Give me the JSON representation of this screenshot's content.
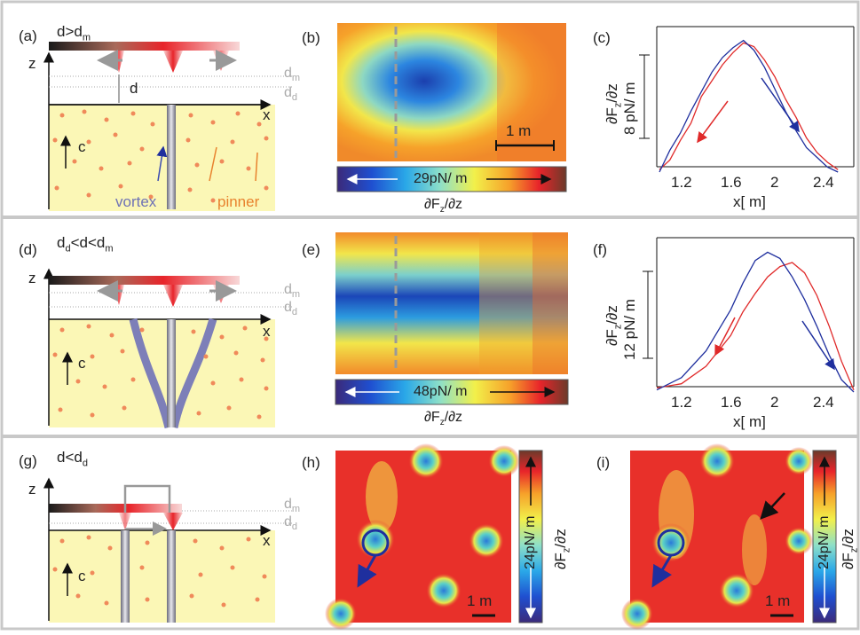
{
  "panels": {
    "a": {
      "letter": "(a)",
      "condition": "d>d",
      "cond_sub": "m",
      "z": "z",
      "x": "x",
      "d": "d",
      "dm": "d",
      "dm_sub": "m",
      "dd": "d",
      "dd_sub": "d",
      "c": "c",
      "vortex": "vortex",
      "pinner": "pinner"
    },
    "b": {
      "letter": "(b)",
      "scalebar": "1 m",
      "colorbar_label": "29pN/ m",
      "colorbar_axis": "∂F",
      "colorbar_axis_sub": "z",
      "colorbar_axis_end": "/∂z"
    },
    "c": {
      "letter": "(c)",
      "ylabel": "∂F",
      "ylabel_sub": "z",
      "ylabel_end": "/∂z",
      "scale": "8 pN/ m",
      "xlabel": "x[ m]",
      "xticks": [
        "1.2",
        "1.6",
        "2",
        "2.4"
      ]
    },
    "d": {
      "letter": "(d)",
      "condition_pre": "d",
      "condition_pre_sub": "d",
      "condition_mid": "<d<d",
      "condition_sub": "m",
      "z": "z",
      "x": "x",
      "dm": "d",
      "dm_sub": "m",
      "dd": "d",
      "dd_sub": "d",
      "c": "c"
    },
    "e": {
      "letter": "(e)",
      "colorbar_label": "48pN/ m",
      "colorbar_axis": "∂F",
      "colorbar_axis_sub": "z",
      "colorbar_axis_end": "/∂z"
    },
    "f": {
      "letter": "(f)",
      "ylabel": "∂F",
      "ylabel_sub": "z",
      "ylabel_end": "/∂z",
      "scale": "12 pN/ m",
      "xlabel": "x[ m]",
      "xticks": [
        "1.2",
        "1.6",
        "2",
        "2.4"
      ]
    },
    "g": {
      "letter": "(g)",
      "condition": "d<d",
      "cond_sub": "d",
      "z": "z",
      "x": "x",
      "dm": "d",
      "dm_sub": "m",
      "dd": "d",
      "dd_sub": "d",
      "c": "c"
    },
    "h": {
      "letter": "(h)",
      "scalebar": "1 m",
      "colorbar_label": "24pN/ m",
      "colorbar_axis": "∂F",
      "colorbar_axis_sub": "z",
      "colorbar_axis_end": "/∂z"
    },
    "i": {
      "letter": "(i)",
      "scalebar": "1 m",
      "colorbar_label": "24pN/ m",
      "colorbar_axis": "∂F",
      "colorbar_axis_sub": "z",
      "colorbar_axis_end": "/∂z"
    }
  },
  "colors": {
    "frame": "#c0c0c0",
    "sample": "#fbf7b6",
    "pinner": "#f08a5a",
    "vortex": "#7d7fb8",
    "red_trace": "#e02a2a",
    "blue_trace": "#1f2f9e",
    "grey_dash": "#9a9a9a",
    "pinner_label": "#e8822e",
    "vortex_label": "#6e72b5"
  },
  "chart_data": [
    {
      "type": "line",
      "title": "",
      "xlabel": "x[ m]",
      "ylabel": "∂Fz/∂z",
      "xlim": [
        1.1,
        2.6
      ],
      "x_ticks": [
        "1.2",
        "1.6",
        "2",
        "2.4"
      ],
      "scale_bar": "8 pN/ m",
      "series": [
        {
          "color": "#e02a2a",
          "x": [
            1.12,
            1.2,
            1.28,
            1.36,
            1.44,
            1.52,
            1.6,
            1.68,
            1.76,
            1.84,
            1.92,
            2.0,
            2.08,
            2.16,
            2.24,
            2.32,
            2.4,
            2.48
          ],
          "y": [
            0.2,
            1.0,
            2.6,
            4.0,
            6.2,
            7.5,
            8.8,
            9.8,
            10.6,
            10.3,
            9.2,
            7.8,
            6.0,
            4.5,
            2.8,
            1.6,
            0.8,
            0.2
          ]
        },
        {
          "color": "#1f2f9e",
          "x": [
            1.12,
            1.2,
            1.28,
            1.36,
            1.44,
            1.52,
            1.6,
            1.68,
            1.76,
            1.84,
            1.92,
            2.0,
            2.08,
            2.16,
            2.24,
            2.32,
            2.4,
            2.48
          ],
          "y": [
            0.0,
            1.8,
            3.2,
            5.0,
            6.6,
            8.2,
            9.4,
            10.2,
            10.8,
            10.0,
            8.6,
            6.8,
            5.0,
            3.4,
            2.0,
            1.2,
            0.4,
            0.0
          ]
        }
      ]
    },
    {
      "type": "line",
      "title": "",
      "xlabel": "x[ m]",
      "ylabel": "∂Fz/∂z",
      "xlim": [
        1.0,
        2.6
      ],
      "x_ticks": [
        "1.2",
        "1.6",
        "2",
        "2.4"
      ],
      "scale_bar": "12 pN/ m",
      "series": [
        {
          "color": "#e02a2a",
          "x": [
            1.0,
            1.2,
            1.4,
            1.6,
            1.7,
            1.8,
            1.9,
            2.0,
            2.1,
            2.2,
            2.3,
            2.4,
            2.5,
            2.6
          ],
          "y": [
            0.4,
            0.8,
            2.5,
            5.5,
            7.8,
            9.6,
            11.2,
            12.2,
            12.6,
            11.6,
            9.4,
            6.4,
            3.0,
            0.2
          ]
        },
        {
          "color": "#1f2f9e",
          "x": [
            1.0,
            1.2,
            1.4,
            1.6,
            1.7,
            1.8,
            1.9,
            2.0,
            2.1,
            2.2,
            2.3,
            2.4,
            2.5,
            2.6
          ],
          "y": [
            0.2,
            1.4,
            4.0,
            8.0,
            10.6,
            12.8,
            13.6,
            13.0,
            11.2,
            9.0,
            6.4,
            3.6,
            1.2,
            0.0
          ]
        }
      ]
    }
  ]
}
